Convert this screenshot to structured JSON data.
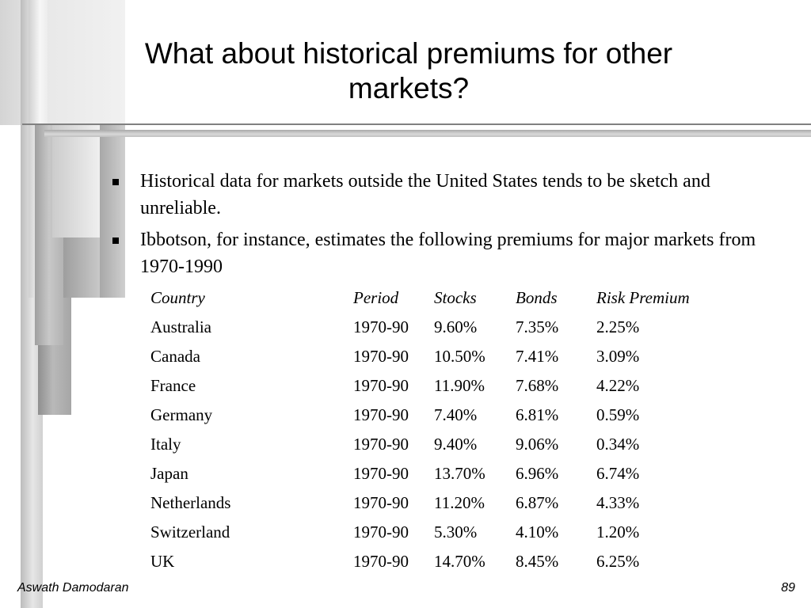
{
  "slide": {
    "title": "What about historical premiums for other markets?",
    "bullets": [
      "Historical data for markets outside the United States tends to be sketch and unreliable.",
      "Ibbotson, for instance, estimates the following premiums for major markets from 1970-1990"
    ],
    "table": {
      "headers": [
        "Country",
        "Period",
        "Stocks",
        "Bonds",
        "Risk Premium"
      ],
      "rows": [
        [
          "Australia",
          "1970-90",
          "9.60%",
          "7.35%",
          "2.25%"
        ],
        [
          "Canada",
          "1970-90",
          "10.50%",
          "7.41%",
          "3.09%"
        ],
        [
          "France",
          "1970-90",
          "11.90%",
          "7.68%",
          "4.22%"
        ],
        [
          "Germany",
          "1970-90",
          "7.40%",
          "6.81%",
          "0.59%"
        ],
        [
          "Italy",
          "1970-90",
          "9.40%",
          "9.06%",
          "0.34%"
        ],
        [
          "Japan",
          "1970-90",
          "13.70%",
          "6.96%",
          "6.74%"
        ],
        [
          "Netherlands",
          "1970-90",
          "11.20%",
          "6.87%",
          "4.33%"
        ],
        [
          "Switzerland",
          "1970-90",
          "5.30%",
          "4.10%",
          "1.20%"
        ],
        [
          "UK",
          "1970-90",
          "14.70%",
          "8.45%",
          "6.25%"
        ]
      ]
    },
    "footer": {
      "author": "Aswath Damodaran",
      "page_number": "89"
    }
  },
  "colors": {
    "text": "#000000",
    "background": "#ffffff",
    "decoration_gray": "#a6a6a6"
  }
}
